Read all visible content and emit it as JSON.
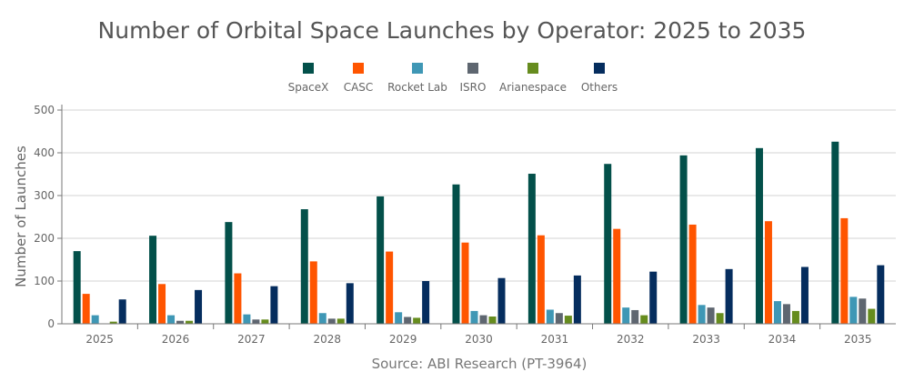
{
  "chart_data": {
    "type": "bar",
    "title": "Number of Orbital Space Launches by Operator: 2025 to 2035",
    "xlabel": "Source: ABI Research (PT-3964)",
    "ylabel": "Number of Launches",
    "ylim": [
      0,
      500
    ],
    "yticks": [
      0,
      100,
      200,
      300,
      400,
      500
    ],
    "grid": true,
    "legend_position": "top",
    "categories": [
      "2025",
      "2026",
      "2027",
      "2028",
      "2029",
      "2030",
      "2031",
      "2032",
      "2033",
      "2034",
      "2035"
    ],
    "series": [
      {
        "name": "SpaceX",
        "color": "#03504A",
        "values": [
          170,
          206,
          238,
          268,
          298,
          326,
          351,
          374,
          394,
          411,
          426
        ]
      },
      {
        "name": "CASC",
        "color": "#FF5500",
        "values": [
          70,
          93,
          118,
          146,
          169,
          190,
          207,
          222,
          232,
          240,
          247
        ]
      },
      {
        "name": "Rocket Lab",
        "color": "#3F97B5",
        "values": [
          20,
          20,
          22,
          25,
          27,
          30,
          33,
          38,
          44,
          53,
          63
        ]
      },
      {
        "name": "ISRO",
        "color": "#5E6670",
        "values": [
          0,
          7,
          10,
          12,
          16,
          20,
          25,
          32,
          38,
          46,
          59
        ]
      },
      {
        "name": "Arianespace",
        "color": "#668C1E",
        "values": [
          5,
          7,
          10,
          12,
          14,
          17,
          19,
          20,
          25,
          30,
          35
        ]
      },
      {
        "name": "Others",
        "color": "#052D5E",
        "values": [
          57,
          79,
          88,
          95,
          100,
          107,
          113,
          122,
          128,
          133,
          137
        ]
      }
    ]
  }
}
